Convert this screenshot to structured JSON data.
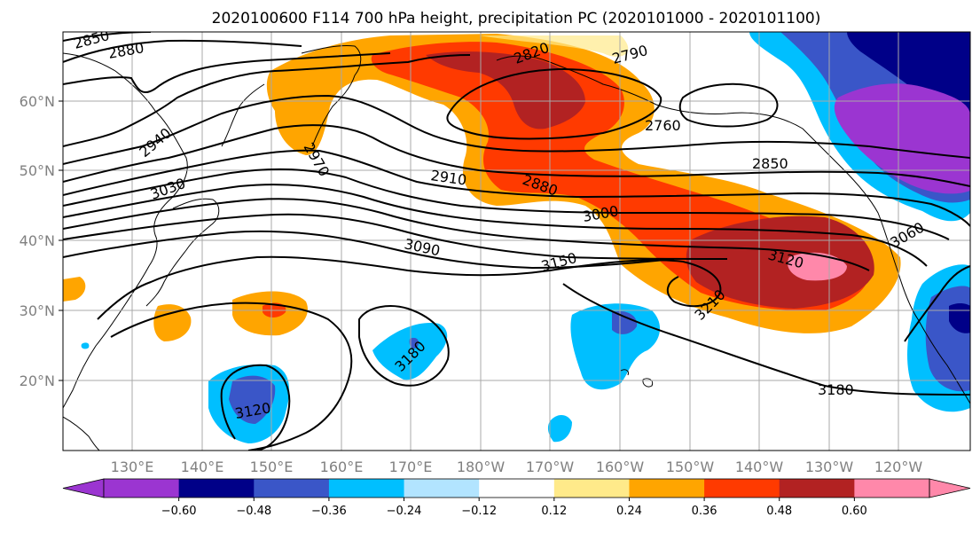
{
  "title": "2020100600 F114 700 hPa height, precipitation PC (2020101000 - 2020101100)",
  "lat_labels": [
    "60°N",
    "50°N",
    "40°N",
    "30°N",
    "20°N"
  ],
  "lon_labels": [
    "130°E",
    "140°E",
    "150°E",
    "160°E",
    "170°E",
    "180°W",
    "170°W",
    "160°W",
    "150°W",
    "140°W",
    "130°W",
    "120°W"
  ],
  "colorbar": {
    "ticks": [
      "−0.60",
      "−0.48",
      "−0.36",
      "−0.24",
      "−0.12",
      "0.12",
      "0.24",
      "0.36",
      "0.48",
      "0.60"
    ],
    "colors": [
      "#9b35d1",
      "#000088",
      "#3a56c8",
      "#00bfff",
      "#b2e4ff",
      "#ffffff",
      "#ffea8a",
      "#ffa500",
      "#ff3a00",
      "#b22222",
      "#ff88aa"
    ]
  },
  "contour_labels": [
    "2850",
    "2880",
    "2820",
    "2790",
    "2760",
    "2940",
    "2970",
    "3030",
    "2910",
    "2880",
    "2850",
    "3000",
    "3090",
    "3150",
    "3120",
    "3060",
    "3210",
    "3180",
    "3180",
    "3120"
  ],
  "colors": {
    "contour": "#000000",
    "grid": "#a8a8a8",
    "axis_label": "#808080"
  }
}
